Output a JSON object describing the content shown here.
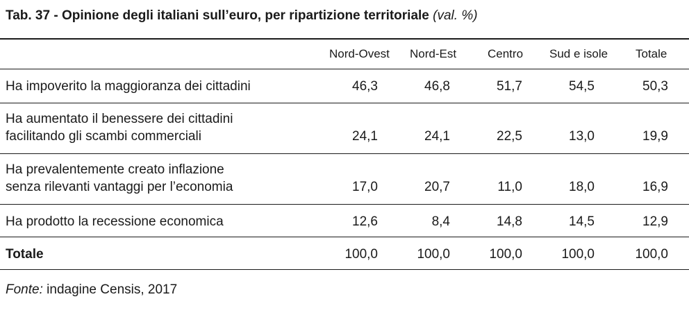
{
  "table": {
    "title": "Tab. 37 - Opinione degli italiani sull’euro, per ripartizione territoriale",
    "unit": "(val. %)",
    "columns": [
      "Nord-Ovest",
      "Nord-Est",
      "Centro",
      "Sud e isole",
      "Totale"
    ],
    "rows": [
      {
        "label": [
          "Ha impoverito la maggioranza dei cittadini"
        ],
        "values": [
          "46,3",
          "46,8",
          "51,7",
          "54,5",
          "50,3"
        ]
      },
      {
        "label": [
          "Ha aumentato il benessere dei cittadini",
          "facilitando gli scambi commerciali"
        ],
        "values": [
          "24,1",
          "24,1",
          "22,5",
          "13,0",
          "19,9"
        ]
      },
      {
        "label": [
          "Ha prevalentemente creato inflazione",
          "senza rilevanti vantaggi per l’economia"
        ],
        "values": [
          "17,0",
          "20,7",
          "11,0",
          "18,0",
          "16,9"
        ]
      },
      {
        "label": [
          "Ha prodotto la recessione economica"
        ],
        "values": [
          "12,6",
          "8,4",
          "14,8",
          "14,5",
          "12,9"
        ]
      }
    ],
    "total": {
      "label": "Totale",
      "values": [
        "100,0",
        "100,0",
        "100,0",
        "100,0",
        "100,0"
      ]
    }
  },
  "source": {
    "label": "Fonte:",
    "text": " indagine Censis, 2017"
  }
}
